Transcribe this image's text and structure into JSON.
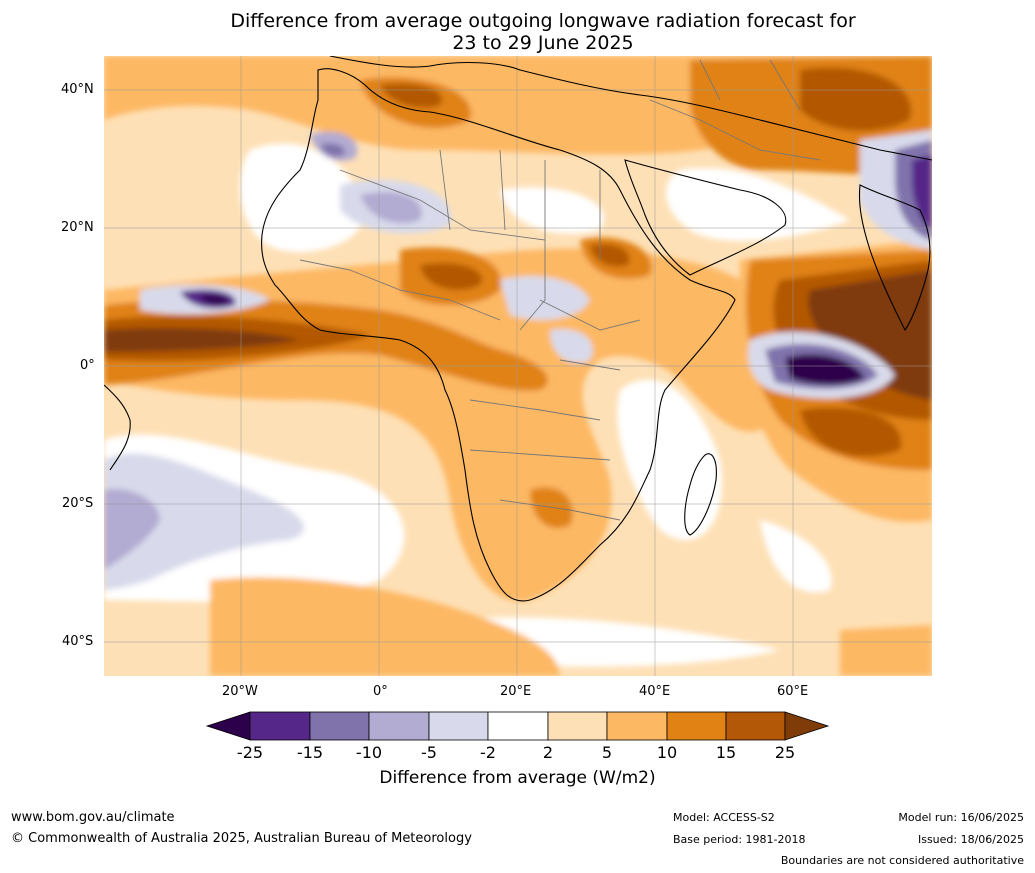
{
  "title_line1": "Difference from average outgoing longwave radiation forecast for",
  "title_line2": "23 to 29 June 2025",
  "lat_ticks": [
    "40°N",
    "20°N",
    "0°",
    "20°S",
    "40°S"
  ],
  "lon_ticks": [
    "20°W",
    "0°",
    "20°E",
    "40°E",
    "60°E"
  ],
  "colorbar": {
    "title": "Difference from average (W/m2)",
    "labels": [
      "-25",
      "-15",
      "-10",
      "-5",
      "-2",
      "2",
      "5",
      "10",
      "15",
      "25"
    ],
    "colors": [
      "#2d004b",
      "#542788",
      "#8073ac",
      "#b2abd2",
      "#d8daeb",
      "#ffffff",
      "#fee0b6",
      "#fdb863",
      "#e08214",
      "#b35806",
      "#7f3b08"
    ]
  },
  "footer": {
    "url": "www.bom.gov.au/climate",
    "copyright": "© Commonwealth of Australia 2025, Australian Bureau of Meteorology",
    "model": "Model: ACCESS-S2",
    "base_period": "Base period: 1981-2018",
    "model_run": "Model run: 16/06/2025",
    "issued": "Issued: 18/06/2025",
    "disclaimer": "Boundaries are not considered authoritative"
  }
}
